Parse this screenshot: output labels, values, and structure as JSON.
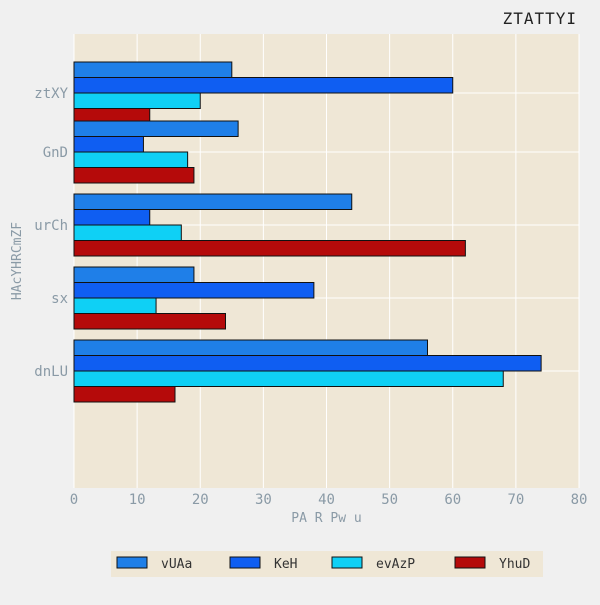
{
  "chart_data": {
    "type": "bar",
    "orientation": "horizontal",
    "title": "ZTATTYI",
    "xlabel": "PA R Pw u",
    "ylabel": "HAcYHRCmZF",
    "xlim": [
      0,
      80
    ],
    "xticks": [
      "0",
      "10",
      "20",
      "30",
      "40",
      "50",
      "60",
      "70",
      "80"
    ],
    "categories": [
      "ztXY",
      "GnD",
      "urCh",
      "sx",
      "dnLU"
    ],
    "grid": true,
    "legend_position": "bottom",
    "series": [
      {
        "name": "vUAa",
        "color": "#1f7fe8",
        "values": [
          25,
          26,
          44,
          19,
          56
        ]
      },
      {
        "name": "KeH",
        "color": "#0f5ef2",
        "values": [
          60,
          11,
          12,
          38,
          74
        ]
      },
      {
        "name": "evAzP",
        "color": "#0fd0f5",
        "values": [
          20,
          18,
          17,
          13,
          68
        ]
      },
      {
        "name": "YhuD",
        "color": "#b50a0a",
        "values": [
          12,
          19,
          62,
          24,
          16
        ]
      }
    ]
  },
  "colors": {
    "background": "#f0f0f0",
    "plot_background": "#efe7d6",
    "grid": "#ffffff",
    "legend_background": "#efe7d6"
  }
}
